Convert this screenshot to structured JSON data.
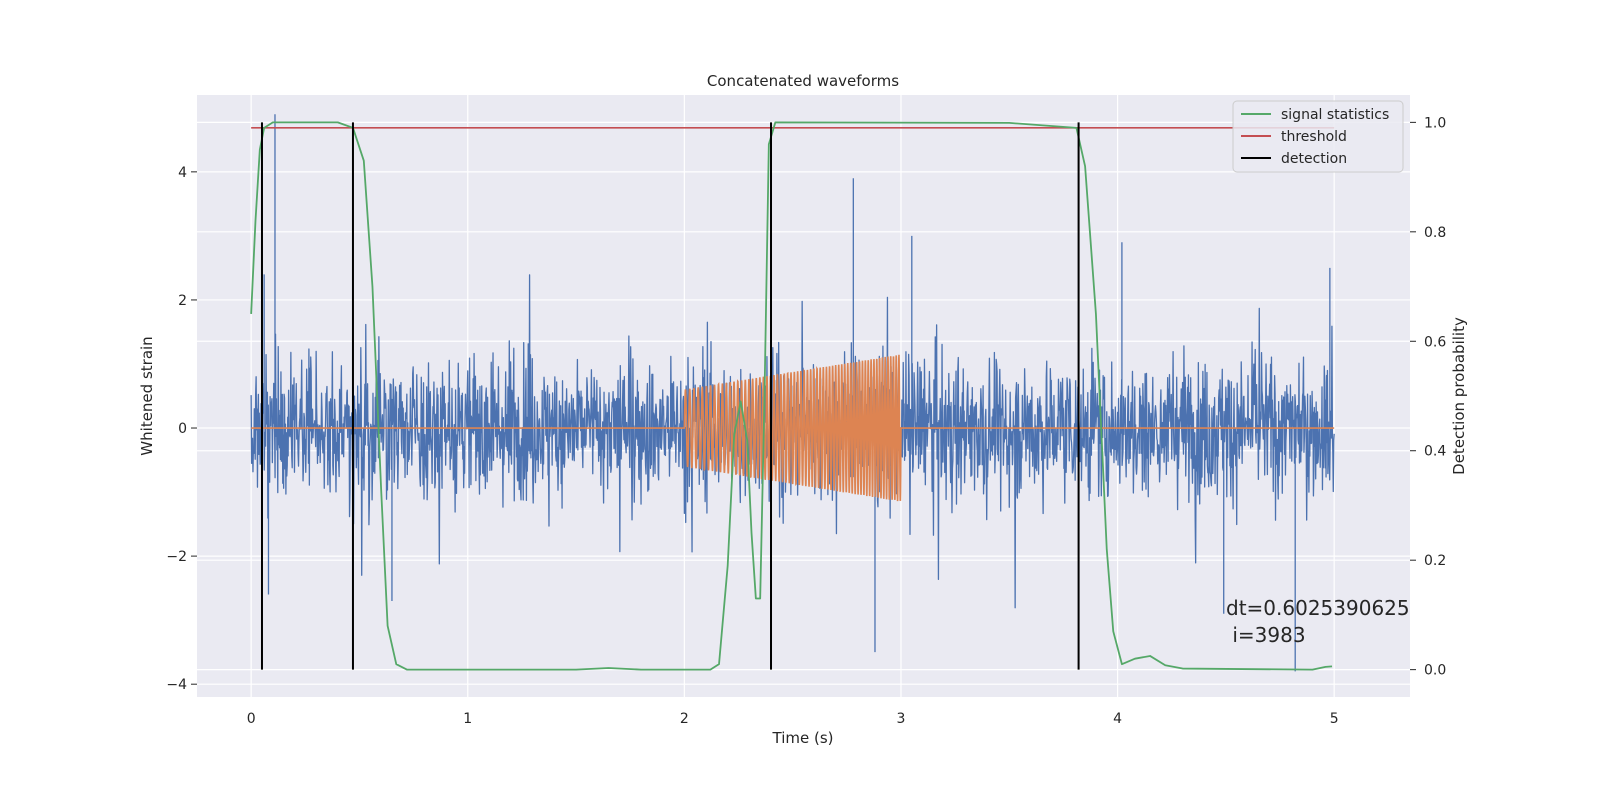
{
  "chart_data": {
    "type": "line",
    "title": "Concatenated waveforms",
    "xlabel": "Time (s)",
    "ylabel": "Whitened strain",
    "y2label": "Detection probability",
    "xlim": [
      -0.25,
      5.35
    ],
    "ylim": [
      -4.2,
      5.2
    ],
    "y2lim": [
      -0.05,
      1.05
    ],
    "xticks": [
      0,
      1,
      2,
      3,
      4,
      5
    ],
    "yticks": [
      -4,
      -2,
      0,
      2,
      4
    ],
    "y2ticks": [
      0.0,
      0.2,
      0.4,
      0.6,
      0.8,
      1.0
    ],
    "xtick_labels": [
      "0",
      "1",
      "2",
      "3",
      "4",
      "5"
    ],
    "ytick_labels": [
      "−4",
      "−2",
      "0",
      "2",
      "4"
    ],
    "y2tick_labels": [
      "0.0",
      "0.2",
      "0.4",
      "0.6",
      "0.8",
      "1.0"
    ],
    "grid": true,
    "legend_position": "top-right",
    "annotation": [
      "dt=0.6025390625",
      " i=3983"
    ],
    "series": [
      {
        "role": "strain",
        "color": "#4c72b0",
        "x_range": [
          0,
          5
        ],
        "amplitude": 1.0,
        "peaks": [
          [
            0.11,
            4.9
          ],
          [
            0.06,
            2.4
          ],
          [
            0.05,
            -2.3
          ],
          [
            0.08,
            -2.6
          ],
          [
            0.65,
            -2.7
          ],
          [
            2.78,
            3.9
          ],
          [
            2.88,
            -3.5
          ],
          [
            3.05,
            3.0
          ],
          [
            4.02,
            2.9
          ],
          [
            4.49,
            -2.9
          ],
          [
            4.82,
            -3.8
          ],
          [
            4.98,
            2.5
          ]
        ]
      },
      {
        "role": "injected signal",
        "color": "#dd8452",
        "x_range": [
          0,
          5
        ],
        "envelope": [
          [
            2.0,
            0.6
          ],
          [
            3.0,
            1.15
          ]
        ]
      },
      {
        "name": "signal statistics",
        "color": "#55a868",
        "axis": "y2",
        "points": [
          [
            0.0,
            0.65
          ],
          [
            0.02,
            0.82
          ],
          [
            0.04,
            0.95
          ],
          [
            0.06,
            0.99
          ],
          [
            0.1,
            1.0
          ],
          [
            0.4,
            1.0
          ],
          [
            0.47,
            0.99
          ],
          [
            0.52,
            0.93
          ],
          [
            0.56,
            0.7
          ],
          [
            0.6,
            0.33
          ],
          [
            0.63,
            0.08
          ],
          [
            0.67,
            0.01
          ],
          [
            0.72,
            0.0
          ],
          [
            1.5,
            0.0
          ],
          [
            1.65,
            0.003
          ],
          [
            1.8,
            0.0
          ],
          [
            2.12,
            0.0
          ],
          [
            2.16,
            0.01
          ],
          [
            2.2,
            0.19
          ],
          [
            2.23,
            0.43
          ],
          [
            2.26,
            0.49
          ],
          [
            2.29,
            0.42
          ],
          [
            2.31,
            0.25
          ],
          [
            2.33,
            0.13
          ],
          [
            2.35,
            0.13
          ],
          [
            2.37,
            0.5
          ],
          [
            2.39,
            0.96
          ],
          [
            2.42,
            1.0
          ],
          [
            3.5,
            0.999
          ],
          [
            3.81,
            0.99
          ],
          [
            3.85,
            0.92
          ],
          [
            3.9,
            0.65
          ],
          [
            3.95,
            0.22
          ],
          [
            3.98,
            0.07
          ],
          [
            4.02,
            0.01
          ],
          [
            4.08,
            0.02
          ],
          [
            4.15,
            0.025
          ],
          [
            4.22,
            0.008
          ],
          [
            4.3,
            0.002
          ],
          [
            4.9,
            0.0
          ],
          [
            4.96,
            0.005
          ],
          [
            4.99,
            0.006
          ]
        ]
      },
      {
        "name": "threshold",
        "color": "#c44e52",
        "axis": "y2",
        "value": 0.99,
        "x_range": [
          0,
          5
        ]
      },
      {
        "name": "detection",
        "color": "#000000",
        "axis": "y2",
        "x": [
          0.05,
          0.47,
          2.4,
          3.82
        ],
        "y_range": [
          0.0,
          1.0
        ]
      }
    ]
  }
}
